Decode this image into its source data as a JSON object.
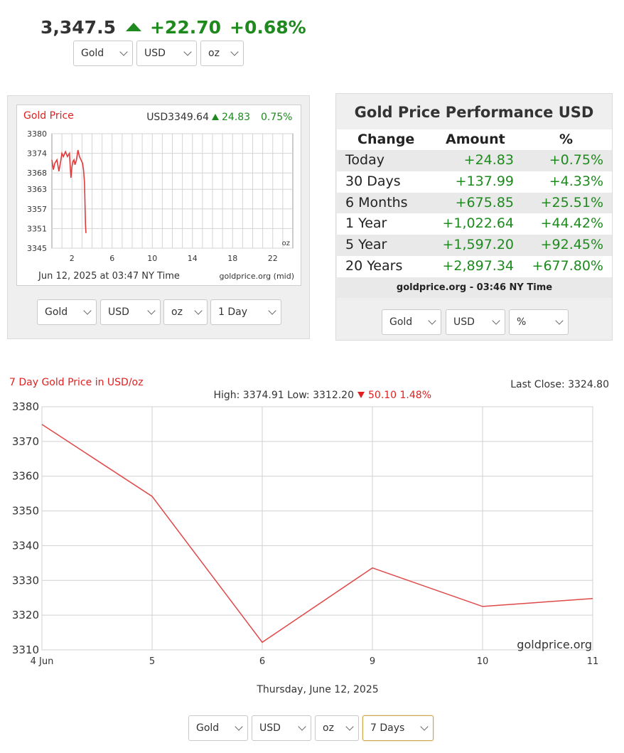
{
  "ticker": {
    "price": "3,347.5",
    "change": "+22.70",
    "percent": "+0.68%"
  },
  "top_selects": {
    "metal": "Gold",
    "currency": "USD",
    "unit": "oz"
  },
  "small_chart": {
    "title": "Gold Price",
    "quote": "USD3349.64",
    "change": "24.83",
    "percent": "0.75%",
    "unit": "oz",
    "footer_left": "Jun 12, 2025 at 03:47 NY Time",
    "footer_right": "goldprice.org (mid)",
    "selects": {
      "metal": "Gold",
      "currency": "USD",
      "unit": "oz",
      "range": "1 Day"
    }
  },
  "performance": {
    "title": "Gold Price Performance USD",
    "headers": [
      "Change",
      "Amount",
      "%"
    ],
    "rows": [
      {
        "label": "Today",
        "amount": "+24.83",
        "pct": "+0.75%"
      },
      {
        "label": "30 Days",
        "amount": "+137.99",
        "pct": "+4.33%"
      },
      {
        "label": "6 Months",
        "amount": "+675.85",
        "pct": "+25.51%"
      },
      {
        "label": "1 Year",
        "amount": "+1,022.64",
        "pct": "+44.42%"
      },
      {
        "label": "5 Year",
        "amount": "+1,597.20",
        "pct": "+92.45%"
      },
      {
        "label": "20 Years",
        "amount": "+2,897.34",
        "pct": "+677.80%"
      }
    ],
    "footer": "goldprice.org - 03:46 NY Time",
    "selects": {
      "metal": "Gold",
      "currency": "USD",
      "mode": "%"
    }
  },
  "big_chart": {
    "title": "7 Day Gold Price in USD/oz",
    "last_close": "Last Close: 3324.80",
    "hl_text": "High: 3374.91 Low: 3312.20",
    "hl_change": "50.10 1.48%",
    "watermark": "goldprice.org",
    "date": "Thursday, June 12, 2025",
    "selects": {
      "metal": "Gold",
      "currency": "USD",
      "unit": "oz",
      "range": "7 Days"
    }
  },
  "chart_data": [
    {
      "type": "line",
      "title": "Gold Price",
      "xlabel": "",
      "ylabel": "",
      "ylim": [
        3345,
        3380
      ],
      "yticks": [
        3345,
        3351,
        3357,
        3363,
        3368,
        3374,
        3380
      ],
      "xlim": [
        0,
        24
      ],
      "xticks": [
        "2",
        "6",
        "10",
        "14",
        "18",
        "22"
      ],
      "xtick_values": [
        2,
        6,
        10,
        14,
        18,
        22
      ],
      "grid": true,
      "series": [
        {
          "x": [
            0,
            0.15,
            0.3,
            0.5,
            0.7,
            0.9,
            1.0,
            1.15,
            1.35,
            1.55,
            1.75,
            1.9,
            2.0,
            2.1,
            2.2,
            2.3,
            2.45,
            2.6,
            2.75,
            2.9,
            3.05,
            3.15,
            3.25,
            3.35,
            3.4
          ],
          "y": [
            3372,
            3369,
            3371,
            3372,
            3368.5,
            3372,
            3374,
            3373,
            3374.5,
            3373,
            3374,
            3366.5,
            3370,
            3371.5,
            3372,
            3370.5,
            3372,
            3375,
            3373,
            3372,
            3371,
            3369,
            3365,
            3352,
            3349.6
          ]
        }
      ]
    },
    {
      "type": "line",
      "title": "7 Day Gold Price in USD/oz",
      "xlabel": "Thursday, June 12, 2025",
      "ylabel": "",
      "categories": [
        "4 Jun",
        "5",
        "6",
        "9",
        "10",
        "11"
      ],
      "ylim": [
        3310,
        3380
      ],
      "yticks": [
        3310,
        3320,
        3330,
        3340,
        3350,
        3360,
        3370,
        3380
      ],
      "grid": true,
      "series": [
        {
          "values": [
            3374.9,
            3354.2,
            3312.2,
            3333.6,
            3322.5,
            3324.8
          ]
        }
      ]
    }
  ]
}
